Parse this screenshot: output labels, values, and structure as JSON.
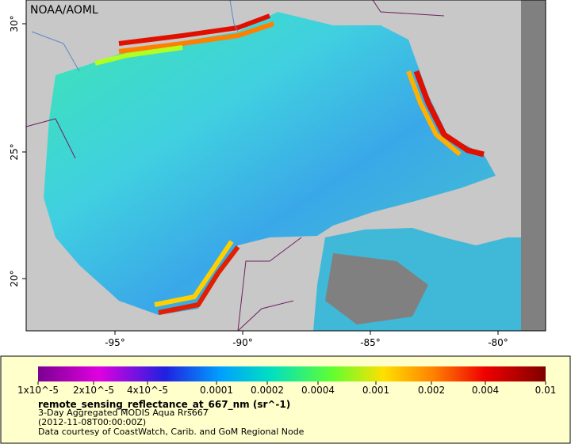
{
  "map": {
    "credit": "NOAA/AOML",
    "lat_ticks": [
      "30°",
      "25°",
      "20°"
    ],
    "lon_ticks": [
      "-95°",
      "-90°",
      "-85°",
      "-80°"
    ]
  },
  "legend": {
    "ticks": [
      "1x10^-5",
      "2x10^-5",
      "4x10^-5",
      "0.0001",
      "0.0002",
      "0.0004",
      "0.001",
      "0.002",
      "0.004",
      "0.01"
    ],
    "variable": "remote_sensing_reflectance_at_667_nm (sr^-1)",
    "lines": [
      "3-Day Aggregated MODIS Aqua Rrs667",
      "(2012-11-08T00:00:00Z)",
      "Data courtesy of CoastWatch, Carib. and GoM Regional Node"
    ]
  }
}
